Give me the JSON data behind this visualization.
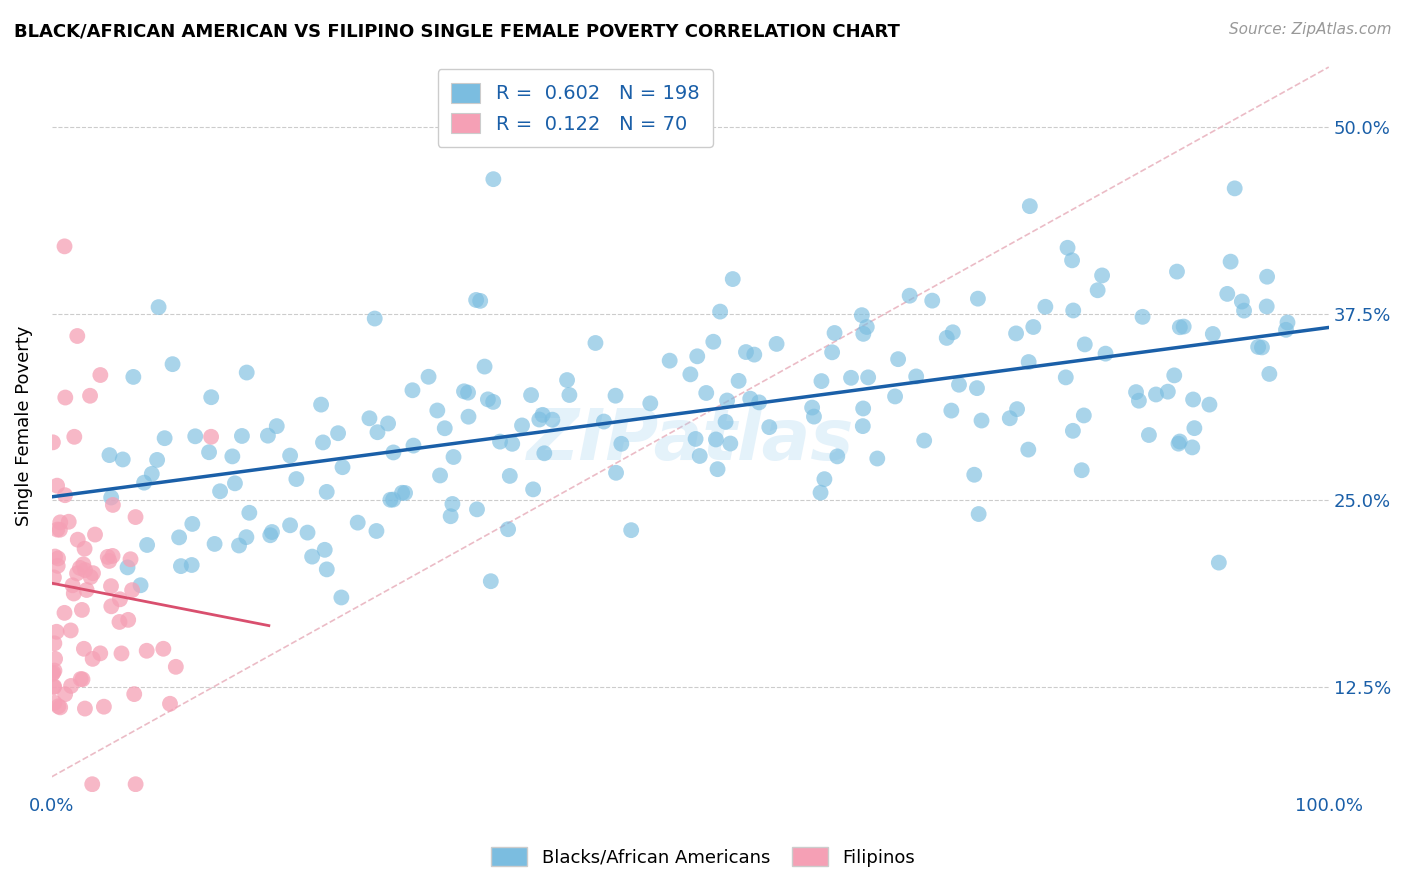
{
  "title": "BLACK/AFRICAN AMERICAN VS FILIPINO SINGLE FEMALE POVERTY CORRELATION CHART",
  "source": "Source: ZipAtlas.com",
  "ylabel": "Single Female Poverty",
  "ytick_labels": [
    "12.5%",
    "25.0%",
    "37.5%",
    "50.0%"
  ],
  "ytick_values": [
    0.125,
    0.25,
    0.375,
    0.5
  ],
  "legend_blue_R": "0.602",
  "legend_blue_N": "198",
  "legend_pink_R": "0.122",
  "legend_pink_N": "70",
  "legend_blue_label": "Blacks/African Americans",
  "legend_pink_label": "Filipinos",
  "blue_color": "#7bbde0",
  "pink_color": "#f5a0b5",
  "trendline_blue_color": "#1a5fa8",
  "trendline_pink_color": "#d94f6e",
  "trendline_diag_color": "#e8b0bc",
  "watermark": "ZIPatlas",
  "blue_R": 0.602,
  "pink_R": 0.122,
  "blue_N": 198,
  "pink_N": 70,
  "xlim": [
    0.0,
    1.0
  ],
  "ylim": [
    0.055,
    0.545
  ]
}
